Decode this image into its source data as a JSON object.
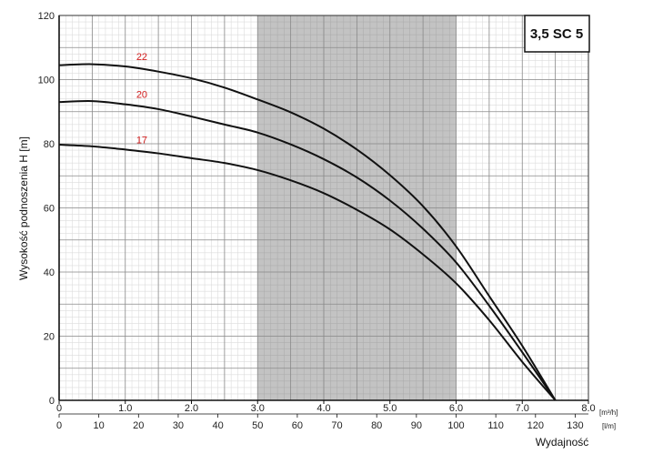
{
  "chart_data": {
    "type": "line",
    "model_label": "3,5 SC 5",
    "ylabel": "Wysokość podnoszenia H [m]",
    "xlabel": "Wydajność",
    "x_primary_unit": "[m³/h]",
    "x_secondary_unit": "[l/m]",
    "ylim": [
      0,
      120
    ],
    "xlim": [
      0,
      8.0
    ],
    "y_ticks": [
      0,
      20,
      40,
      60,
      80,
      100,
      120
    ],
    "x_ticks_primary": [
      "0",
      "1.0",
      "2.0",
      "3.0",
      "4.0",
      "5.0",
      "6.0",
      "7.0",
      "8.0"
    ],
    "x_ticks_secondary": [
      "0",
      "10",
      "20",
      "30",
      "40",
      "50",
      "60",
      "70",
      "80",
      "90",
      "100",
      "110",
      "120",
      "130"
    ],
    "shaded_region": [
      3.0,
      6.0
    ],
    "shaded_color": "#c0c0c0",
    "curve_color": "#111111",
    "label_color": "#d42020",
    "grid": true,
    "series": [
      {
        "name": "22",
        "x": [
          0,
          0.5,
          1.0,
          1.5,
          2.0,
          2.5,
          3.0,
          3.5,
          4.0,
          4.5,
          5.0,
          5.5,
          6.0,
          6.5,
          7.0,
          7.5
        ],
        "y": [
          104.5,
          104.8,
          104.1,
          102.5,
          100.4,
          97.5,
          93.8,
          89.8,
          84.7,
          78.2,
          70.2,
          60.5,
          48.0,
          32.5,
          17.0,
          0
        ]
      },
      {
        "name": "20",
        "x": [
          0,
          0.5,
          1.0,
          1.5,
          2.0,
          2.5,
          3.0,
          3.5,
          4.0,
          4.5,
          5.0,
          5.5,
          6.0,
          6.5,
          7.0,
          7.5
        ],
        "y": [
          93.0,
          93.3,
          92.3,
          90.8,
          88.5,
          86.0,
          83.5,
          79.8,
          75.2,
          69.5,
          62.3,
          53.5,
          43.0,
          29.5,
          15.0,
          0
        ]
      },
      {
        "name": "17",
        "x": [
          0,
          0.5,
          1.0,
          1.5,
          2.0,
          2.5,
          3.0,
          3.5,
          4.0,
          4.5,
          5.0,
          5.5,
          6.0,
          6.5,
          7.0,
          7.5
        ],
        "y": [
          79.7,
          79.2,
          78.2,
          77.0,
          75.5,
          74.0,
          71.8,
          68.6,
          64.6,
          59.4,
          53.3,
          45.5,
          36.5,
          25.0,
          12.0,
          0
        ]
      }
    ]
  }
}
